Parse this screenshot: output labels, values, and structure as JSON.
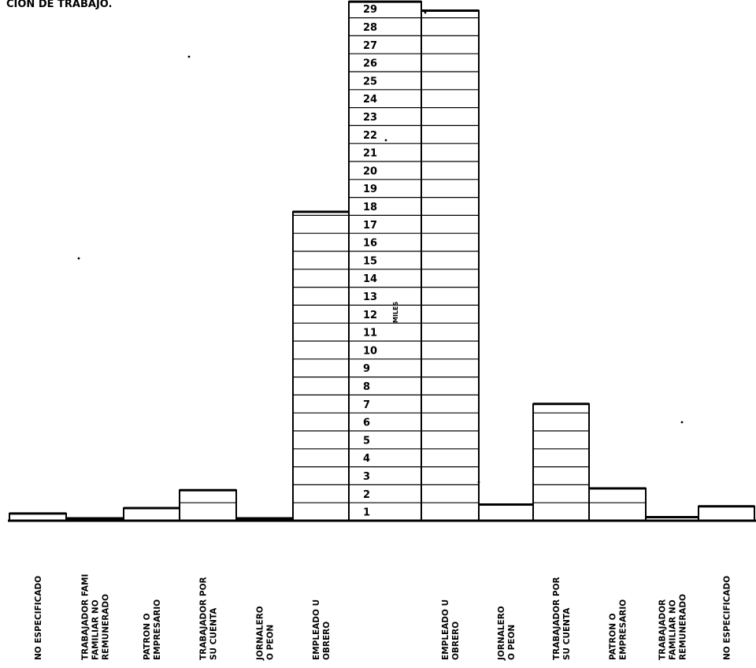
{
  "chart_data": {
    "type": "bar",
    "title": "CION DE TRABAJO.",
    "unit_label": "MILES",
    "ylim": [
      0,
      29
    ],
    "yticks": [
      1,
      2,
      3,
      4,
      5,
      6,
      7,
      8,
      9,
      10,
      11,
      12,
      13,
      14,
      15,
      16,
      17,
      18,
      19,
      20,
      21,
      22,
      23,
      24,
      25,
      26,
      27,
      28,
      29
    ],
    "tick_labels": [
      "1",
      "2",
      "3",
      "4",
      "5",
      "6",
      "7",
      "8",
      "9",
      "10",
      "11",
      "12",
      "13",
      "14",
      "15",
      "16",
      "17",
      "18",
      "19",
      "20",
      "21",
      "22",
      "23",
      "24",
      "25",
      "26",
      "27",
      "28",
      "29"
    ],
    "categories": [
      {
        "label": [
          "NO ESPECIFICADO"
        ],
        "value": 0.4,
        "side": "left"
      },
      {
        "label": [
          "TRABAJADOR FAMI",
          "FAMILIAR NO",
          "REMUNERADO"
        ],
        "value": 0.1,
        "side": "left"
      },
      {
        "label": [
          "PATRON O",
          "EMPRESARIO"
        ],
        "value": 0.7,
        "side": "left"
      },
      {
        "label": [
          "TRABAJADOR POR",
          "SU CUENTA"
        ],
        "value": 1.7,
        "side": "left"
      },
      {
        "label": [
          "JORNALERO",
          "O PEON"
        ],
        "value": 0.1,
        "side": "left"
      },
      {
        "label": [
          "EMPLEADO U",
          "OBRERO"
        ],
        "value": 17.2,
        "side": "left"
      },
      {
        "label": [],
        "value": 28.9,
        "side": "scale"
      },
      {
        "label": [
          "EMPLEADO U",
          "OBRERO"
        ],
        "value": 28.4,
        "side": "right"
      },
      {
        "label": [
          "JORNALERO",
          "O PEON"
        ],
        "value": 0.9,
        "side": "right"
      },
      {
        "label": [
          "TRABAJADOR POR",
          "SU CUENTA"
        ],
        "value": 6.5,
        "side": "right"
      },
      {
        "label": [
          "PATRON O",
          "EMPRESARIO"
        ],
        "value": 1.8,
        "side": "right"
      },
      {
        "label": [
          "TRABAJADOR",
          "FAMILIAR NO",
          "REMUNERADO"
        ],
        "value": 0.2,
        "side": "right"
      },
      {
        "label": [
          "NO ESPECIFICADO"
        ],
        "value": 0.8,
        "side": "right"
      }
    ]
  }
}
